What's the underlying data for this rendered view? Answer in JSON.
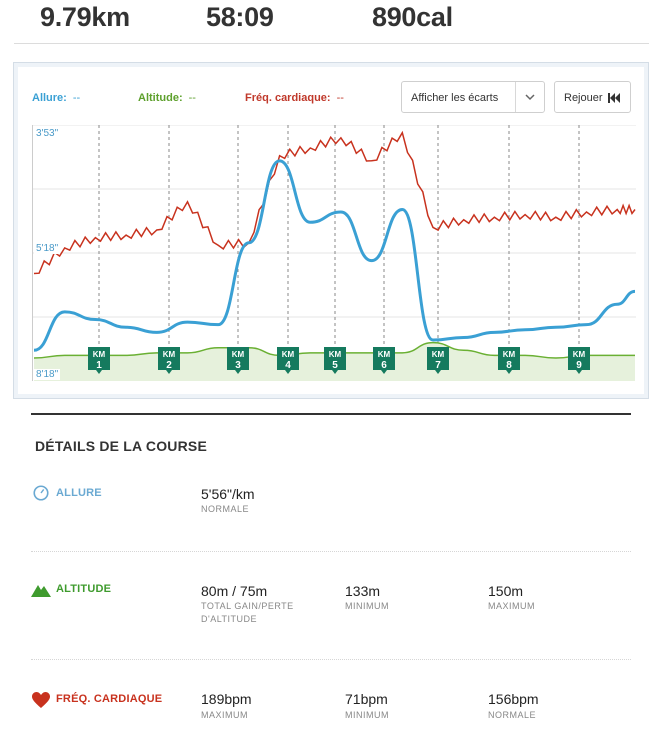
{
  "summary": {
    "distance": "9.79km",
    "duration": "58:09",
    "calories": "890cal"
  },
  "chart": {
    "legend": {
      "pace_label": "Allure:",
      "pace_value": "--",
      "altitude_label": "Altitude:",
      "altitude_value": "--",
      "heart_label": "Fréq. cardiaque:",
      "heart_value": "--"
    },
    "deviation_dropdown": "Afficher les écarts",
    "replay_button": "Rejouer",
    "y_ticks": [
      "3'53\"",
      "5'18\"",
      "8'18\""
    ],
    "km_marker_label": "KM",
    "km_markers": [
      "1",
      "2",
      "3",
      "4",
      "5",
      "6",
      "7",
      "8",
      "9"
    ],
    "colors": {
      "pace": "#3aa0d4",
      "heart": "#c8321e",
      "altitude": "#6ab033",
      "altitude_fill": "#e6f1dc",
      "marker": "#157a5e"
    }
  },
  "chart_data": {
    "type": "line",
    "title": "",
    "xlabel": "km",
    "ylabel": "",
    "x": [
      0,
      0.5,
      1,
      1.5,
      2,
      2.5,
      3,
      3.5,
      4,
      4.5,
      5,
      5.5,
      6,
      6.5,
      7,
      7.5,
      8,
      8.5,
      9,
      9.5,
      9.79
    ],
    "y_pace_ticks": [
      "3'53\"",
      "5'18\"",
      "8'18\""
    ],
    "series": [
      {
        "name": "Allure",
        "color": "#3aa0d4",
        "values": [
          0.12,
          0.27,
          0.24,
          0.21,
          0.19,
          0.23,
          0.22,
          0.54,
          0.86,
          0.62,
          0.66,
          0.47,
          0.67,
          0.16,
          0.17,
          0.19,
          0.2,
          0.21,
          0.22,
          0.3,
          0.35
        ]
      },
      {
        "name": "Fréq. cardiaque",
        "color": "#c8321e",
        "values": [
          0.42,
          0.52,
          0.56,
          0.57,
          0.59,
          0.7,
          0.53,
          0.54,
          0.88,
          0.91,
          0.95,
          0.86,
          0.97,
          0.6,
          0.63,
          0.64,
          0.65,
          0.64,
          0.66,
          0.67,
          0.67
        ]
      },
      {
        "name": "Altitude",
        "color": "#6ab033",
        "values": [
          0.09,
          0.1,
          0.1,
          0.1,
          0.11,
          0.11,
          0.13,
          0.13,
          0.1,
          0.11,
          0.11,
          0.11,
          0.11,
          0.15,
          0.12,
          0.1,
          0.1,
          0.09,
          0.1,
          0.1,
          0.1
        ]
      }
    ],
    "grid": true,
    "legend": "top-left"
  },
  "details": {
    "title": "DÉTAILS DE LA COURSE",
    "pace": {
      "name": "ALLURE",
      "value": "5'56\"/km",
      "caption": "NORMALE"
    },
    "altitude": {
      "name": "ALTITUDE",
      "gain_value": "80m / 75m",
      "gain_caption": "TOTAL GAIN/PERTE D'ALTITUDE",
      "min_value": "133m",
      "min_caption": "MINIMUM",
      "max_value": "150m",
      "max_caption": "MAXIMUM"
    },
    "heart": {
      "name": "FRÉQ. CARDIAQUE",
      "max_value": "189bpm",
      "max_caption": "MAXIMUM",
      "min_value": "71bpm",
      "min_caption": "MINIMUM",
      "normal_value": "156bpm",
      "normal_caption": "NORMALE"
    },
    "colors": {
      "pace": "#6aa9d2",
      "altitude": "#3f9b2e",
      "heart": "#c8321e"
    }
  }
}
